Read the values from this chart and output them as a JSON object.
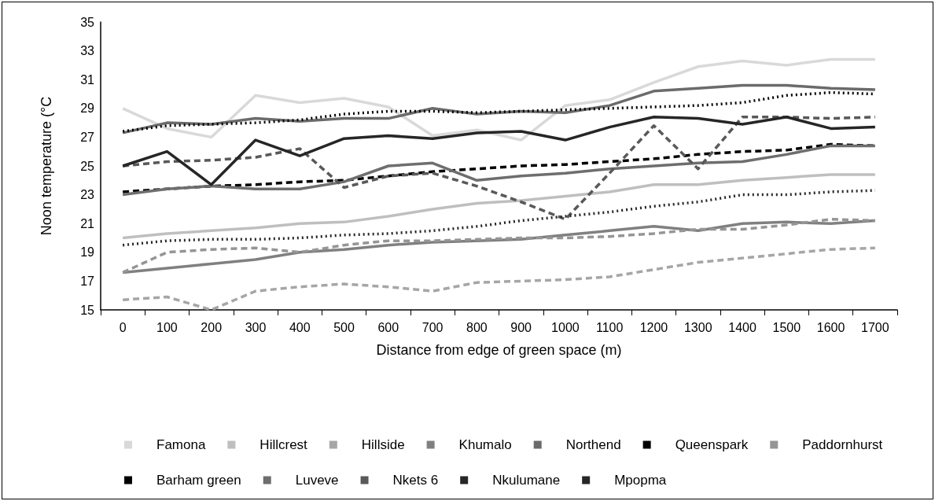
{
  "chart_data": {
    "type": "line",
    "xlabel": "Distance from edge of green space (m)",
    "ylabel": "Noon temperature (°C",
    "categories": [
      "0",
      "100",
      "200",
      "300",
      "400",
      "500",
      "600",
      "700",
      "800",
      "900",
      "1000",
      "1100",
      "1200",
      "1300",
      "1400",
      "1500",
      "1600",
      "1700"
    ],
    "ylim": [
      15,
      35
    ],
    "yticks": [
      15,
      17,
      19,
      21,
      23,
      25,
      27,
      29,
      31,
      33,
      35
    ],
    "grid": false,
    "legend": "bottom",
    "marker": "none",
    "series": [
      {
        "name": "Famona",
        "color": "#d9d9d9",
        "line_style": "solid",
        "values": [
          29.0,
          27.6,
          27.0,
          29.9,
          29.4,
          29.7,
          29.1,
          27.1,
          27.5,
          26.8,
          29.2,
          29.6,
          30.8,
          31.9,
          32.3,
          32.0,
          32.4,
          32.4
        ]
      },
      {
        "name": "Hillcrest",
        "color": "#bfbfbf",
        "line_style": "solid",
        "values": [
          20.0,
          20.3,
          20.5,
          20.7,
          21.0,
          21.1,
          21.5,
          22.0,
          22.4,
          22.6,
          22.9,
          23.2,
          23.7,
          23.7,
          24.0,
          24.2,
          24.4,
          24.4
        ]
      },
      {
        "name": "Hillside",
        "color": "#a6a6a6",
        "line_style": "dashed",
        "values": [
          15.7,
          15.9,
          15.0,
          16.3,
          16.6,
          16.8,
          16.6,
          16.3,
          16.9,
          17.0,
          17.1,
          17.3,
          17.8,
          18.3,
          18.6,
          18.9,
          19.2,
          19.3
        ]
      },
      {
        "name": "Khumalo",
        "color": "#808080",
        "line_style": "solid",
        "values": [
          17.6,
          17.9,
          18.2,
          18.5,
          19.0,
          19.2,
          19.5,
          19.7,
          19.8,
          19.9,
          20.2,
          20.5,
          20.8,
          20.5,
          21.0,
          21.1,
          21.0,
          21.2
        ]
      },
      {
        "name": "Northend",
        "color": "#6b6b6b",
        "line_style": "solid",
        "values": [
          27.3,
          28.0,
          27.9,
          28.3,
          28.1,
          28.3,
          28.3,
          29.0,
          28.6,
          28.8,
          28.7,
          29.2,
          30.2,
          30.4,
          30.6,
          30.6,
          30.4,
          30.3
        ]
      },
      {
        "name": "Queenspark",
        "color": "#000000",
        "line_style": "dashed",
        "values": [
          23.2,
          23.4,
          23.6,
          23.7,
          23.9,
          24.0,
          24.3,
          24.6,
          24.8,
          25.0,
          25.1,
          25.3,
          25.5,
          25.8,
          26.0,
          26.1,
          26.5,
          26.4
        ]
      },
      {
        "name": "Paddornhurst",
        "color": "#959595",
        "line_style": "dashed",
        "values": [
          17.6,
          19.0,
          19.2,
          19.3,
          19.0,
          19.5,
          19.8,
          19.8,
          19.9,
          20.0,
          20.0,
          20.1,
          20.3,
          20.6,
          20.6,
          20.9,
          21.3,
          21.2
        ]
      },
      {
        "name": "Barham green",
        "color": "#000000",
        "line_style": "dotted",
        "values": [
          27.4,
          27.8,
          27.9,
          28.0,
          28.2,
          28.6,
          28.8,
          28.8,
          28.7,
          28.8,
          28.9,
          29.0,
          29.1,
          29.2,
          29.4,
          29.9,
          30.1,
          30.0
        ]
      },
      {
        "name": "Luveve",
        "color": "#6e6e6e",
        "line_style": "solid",
        "values": [
          23.0,
          23.4,
          23.6,
          23.4,
          23.4,
          23.9,
          25.0,
          25.2,
          24.0,
          24.3,
          24.5,
          24.8,
          25.0,
          25.2,
          25.3,
          25.8,
          26.4,
          26.4
        ]
      },
      {
        "name": "Nkets 6",
        "color": "#595959",
        "line_style": "dashed",
        "values": [
          25.0,
          25.3,
          25.4,
          25.6,
          26.2,
          23.5,
          24.3,
          24.5,
          23.6,
          22.5,
          21.3,
          24.5,
          27.8,
          24.8,
          28.4,
          28.4,
          28.3,
          28.4
        ]
      },
      {
        "name": "Nkulumane",
        "color": "#262626",
        "line_style": "dotted",
        "values": [
          19.5,
          19.8,
          19.9,
          19.9,
          20.0,
          20.2,
          20.3,
          20.5,
          20.8,
          21.2,
          21.5,
          21.8,
          22.2,
          22.5,
          23.0,
          23.0,
          23.2,
          23.3
        ]
      },
      {
        "name": "Mpopma",
        "color": "#262626",
        "line_style": "solid",
        "values": [
          25.0,
          26.0,
          23.7,
          26.8,
          25.7,
          26.9,
          27.1,
          26.9,
          27.3,
          27.4,
          26.8,
          27.7,
          28.4,
          28.3,
          27.9,
          28.4,
          27.6,
          27.7
        ]
      }
    ]
  }
}
